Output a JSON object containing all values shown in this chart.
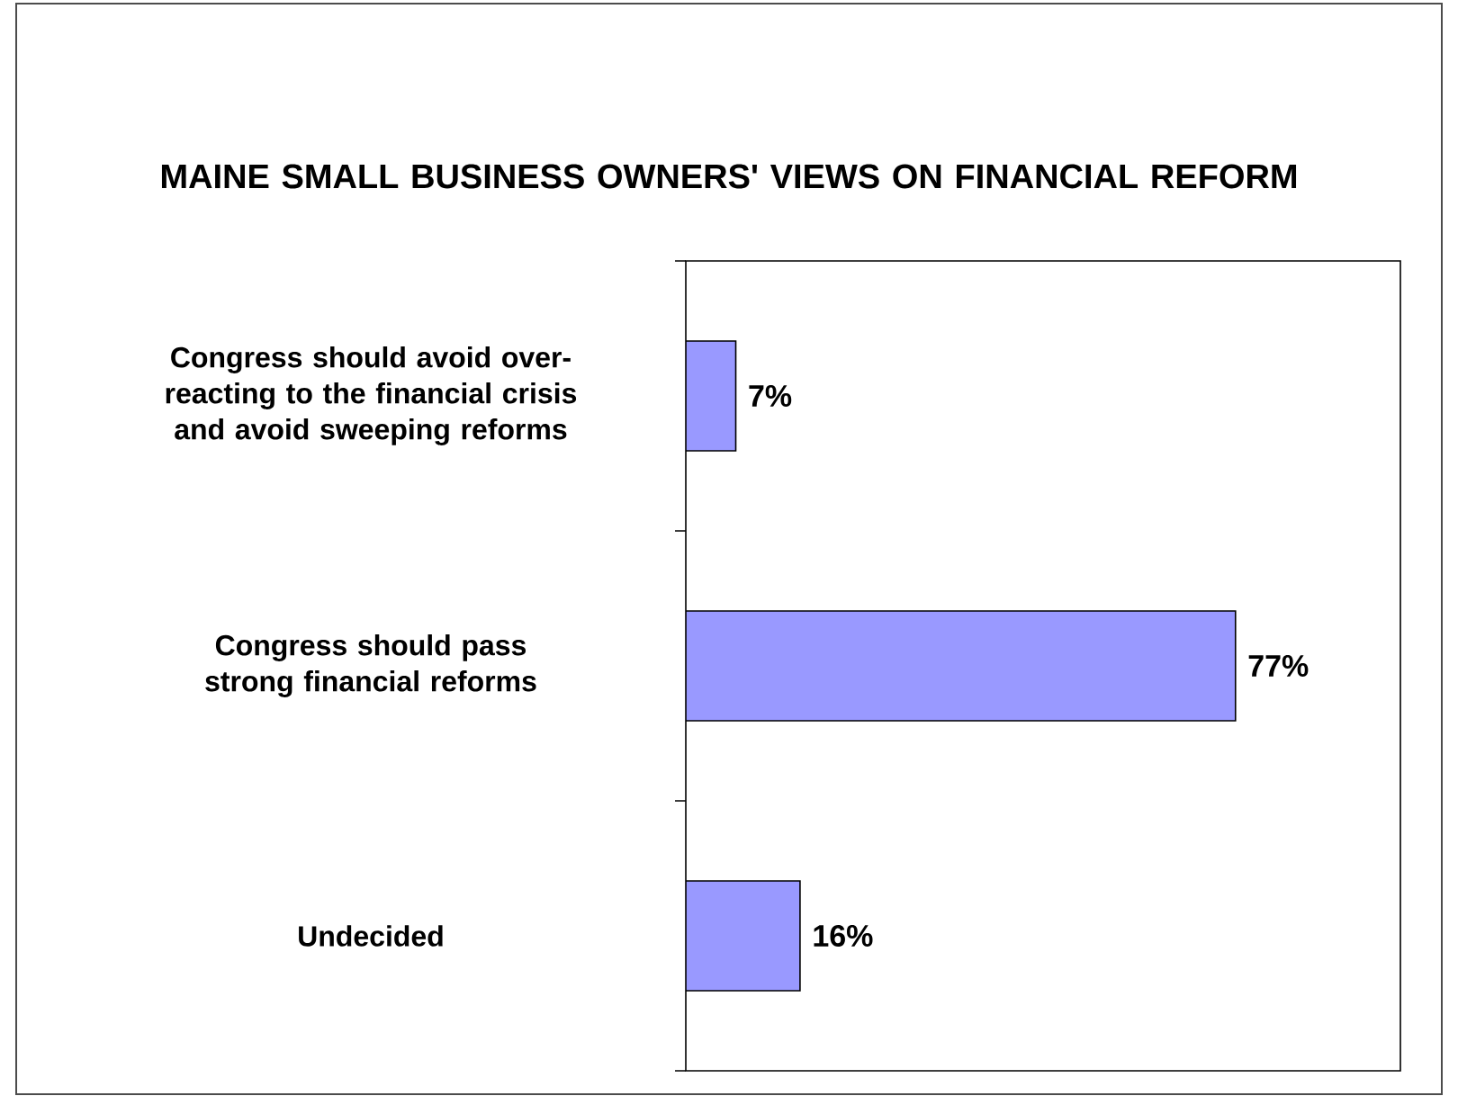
{
  "chart_data": {
    "type": "bar",
    "orientation": "horizontal",
    "title": "MAINE SMALL BUSINESS OWNERS' VIEWS ON FINANCIAL REFORM",
    "categories": [
      "Congress should avoid over-reacting to the financial crisis and avoid sweeping reforms",
      "Congress should pass strong financial reforms",
      "Undecided"
    ],
    "values": [
      7,
      77,
      16
    ],
    "value_labels": [
      "7%",
      "77%",
      "16%"
    ],
    "color": "#9999ff"
  }
}
